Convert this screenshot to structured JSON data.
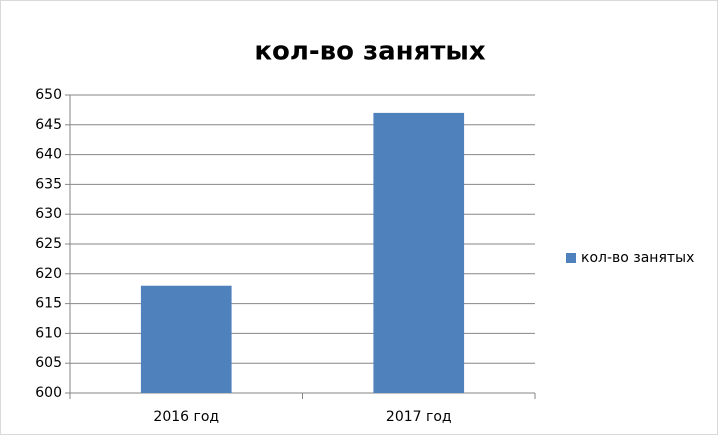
{
  "chart_data": {
    "type": "bar",
    "title": "кол-во занятых",
    "categories": [
      "2016 год",
      "2017 год"
    ],
    "series": [
      {
        "name": "кол-во занятых",
        "color": "#4f81bd",
        "values": [
          618,
          647
        ]
      }
    ],
    "ylim": [
      600,
      650
    ],
    "yticks": [
      600,
      605,
      610,
      615,
      620,
      625,
      630,
      635,
      640,
      645,
      650
    ],
    "grid": true,
    "legend": "right"
  }
}
